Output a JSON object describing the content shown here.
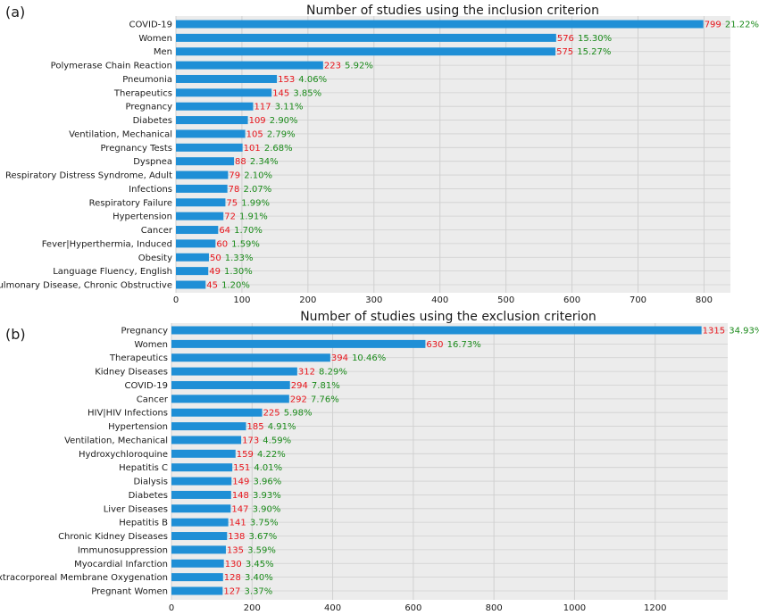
{
  "colors": {
    "bar": "#1f8fd6",
    "count": "#e8141b",
    "pct": "#1a8a1a",
    "panel_bg": "#ececec",
    "grid": "#d0d0d0"
  },
  "chart_data": [
    {
      "type": "bar",
      "orientation": "horizontal",
      "panel_label": "(a)",
      "title": "Number of studies using the inclusion criterion",
      "categories": [
        "COVID-19",
        "Women",
        "Men",
        "Polymerase Chain Reaction",
        "Pneumonia",
        "Therapeutics",
        "Pregnancy",
        "Diabetes",
        "Ventilation, Mechanical",
        "Pregnancy Tests",
        "Dyspnea",
        "Respiratory Distress Syndrome, Adult",
        "Infections",
        "Respiratory Failure",
        "Hypertension",
        "Cancer",
        "Fever|Hyperthermia, Induced",
        "Obesity",
        "Language Fluency, English",
        "Pulmonary Disease, Chronic Obstructive"
      ],
      "values": [
        799,
        576,
        575,
        223,
        153,
        145,
        117,
        109,
        105,
        101,
        88,
        79,
        78,
        75,
        72,
        64,
        60,
        50,
        49,
        45
      ],
      "value_labels": [
        "799",
        "576",
        "575",
        "223",
        "153",
        "145",
        "117",
        "109",
        "105",
        "101",
        "88",
        "79",
        "78",
        "75",
        "72",
        "64",
        "60",
        "50",
        "49",
        "45"
      ],
      "percent_labels": [
        "21.22%",
        "15.30%",
        "15.27%",
        "5.92%",
        "4.06%",
        "3.85%",
        "3.11%",
        "2.90%",
        "2.79%",
        "2.68%",
        "2.34%",
        "2.10%",
        "2.07%",
        "1.99%",
        "1.91%",
        "1.70%",
        "1.59%",
        "1.33%",
        "1.30%",
        "1.20%"
      ],
      "xlim": [
        0,
        840
      ],
      "xticks": [
        0,
        100,
        200,
        300,
        400,
        500,
        600,
        700,
        800
      ],
      "xtick_labels": [
        "0",
        "100",
        "200",
        "300",
        "400",
        "500",
        "600",
        "700",
        "800"
      ],
      "grid": true
    },
    {
      "type": "bar",
      "orientation": "horizontal",
      "panel_label": "(b)",
      "title": "Number of studies using the exclusion criterion",
      "categories": [
        "Pregnancy",
        "Women",
        "Therapeutics",
        "Kidney Diseases",
        "COVID-19",
        "Cancer",
        "HIV|HIV Infections",
        "Hypertension",
        "Ventilation, Mechanical",
        "Hydroxychloroquine",
        "Hepatitis C",
        "Dialysis",
        "Diabetes",
        "Liver Diseases",
        "Hepatitis B",
        "Chronic Kidney Diseases",
        "Immunosuppression",
        "Myocardial Infarction",
        "Extracorporeal Membrane Oxygenation",
        "Pregnant Women"
      ],
      "values": [
        1315,
        630,
        394,
        312,
        294,
        292,
        225,
        185,
        173,
        159,
        151,
        149,
        148,
        147,
        141,
        138,
        135,
        130,
        128,
        127
      ],
      "value_labels": [
        "1315",
        "630",
        "394",
        "312",
        "294",
        "292",
        "225",
        "185",
        "173",
        "159",
        "151",
        "149",
        "148",
        "147",
        "141",
        "138",
        "135",
        "130",
        "128",
        "127"
      ],
      "percent_labels": [
        "34.93%",
        "16.73%",
        "10.46%",
        "8.29%",
        "7.81%",
        "7.76%",
        "5.98%",
        "4.91%",
        "4.59%",
        "4.22%",
        "4.01%",
        "3.96%",
        "3.93%",
        "3.90%",
        "3.75%",
        "3.67%",
        "3.59%",
        "3.45%",
        "3.40%",
        "3.37%"
      ],
      "xlim": [
        0,
        1380
      ],
      "xticks": [
        0,
        200,
        400,
        600,
        800,
        1000,
        1200
      ],
      "xtick_labels": [
        "0",
        "200",
        "400",
        "600",
        "800",
        "1000",
        "1200"
      ],
      "grid": true
    }
  ]
}
